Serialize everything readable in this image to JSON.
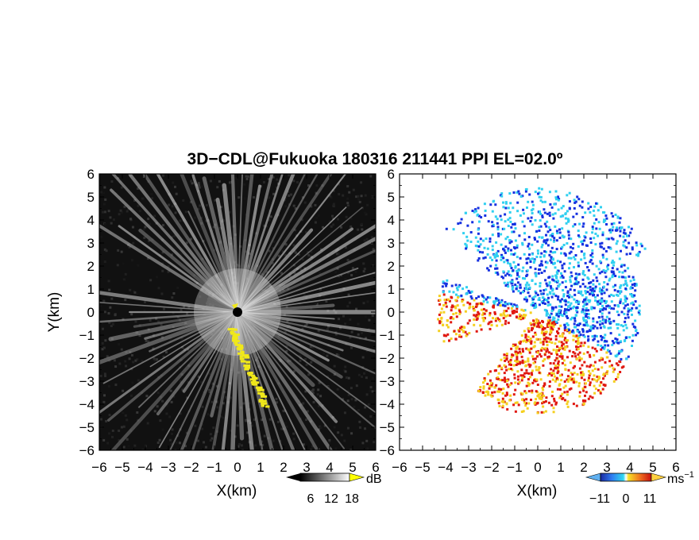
{
  "chart_data": [
    {
      "type": "heatmap",
      "panel": "reflectivity",
      "title": "3D−CDL@Fukuoka 180316 211441 PPI EL=02.0º",
      "xlabel": "X(km)",
      "ylabel": "Y(km)",
      "xlim": [
        -6,
        6
      ],
      "ylim": [
        -6,
        6
      ],
      "xticks": [
        "−6",
        "−5",
        "−4",
        "−3",
        "−2",
        "−1",
        "0",
        "1",
        "2",
        "3",
        "4",
        "5",
        "6"
      ],
      "yticks": [
        "−6",
        "−5",
        "−4",
        "−3",
        "−2",
        "−1",
        "0",
        "1",
        "2",
        "3",
        "4",
        "5",
        "6"
      ],
      "colorscale": "grayscale",
      "colorbar": {
        "unit": "dB",
        "ticks": [
          "6",
          "12",
          "18"
        ],
        "min": 0,
        "max": 24
      },
      "background": "#111111",
      "highlight_color": "#f0e81a"
    },
    {
      "type": "heatmap",
      "panel": "doppler-velocity",
      "xlabel": "X(km)",
      "xlim": [
        -6,
        6
      ],
      "ylim": [
        -6,
        6
      ],
      "xticks": [
        "−6",
        "−5",
        "−4",
        "−3",
        "−2",
        "−1",
        "0",
        "1",
        "2",
        "3",
        "4",
        "5",
        "6"
      ],
      "yticks": [
        "−6",
        "−5",
        "−4",
        "−3",
        "−2",
        "−1",
        "0",
        "1",
        "2",
        "3",
        "4",
        "5",
        "6"
      ],
      "colorscale": "diverging blue-red",
      "colorbar": {
        "unit": "ms",
        "unit_exponent": "−1",
        "ticks": [
          "−11",
          "0",
          "11"
        ],
        "min": -16,
        "max": 16
      },
      "background": "#ffffff",
      "colors": {
        "negative_strong": "#1530e0",
        "negative_weak": "#30d0f0",
        "positive_weak": "#f5d020",
        "positive_strong": "#e01810"
      }
    }
  ]
}
